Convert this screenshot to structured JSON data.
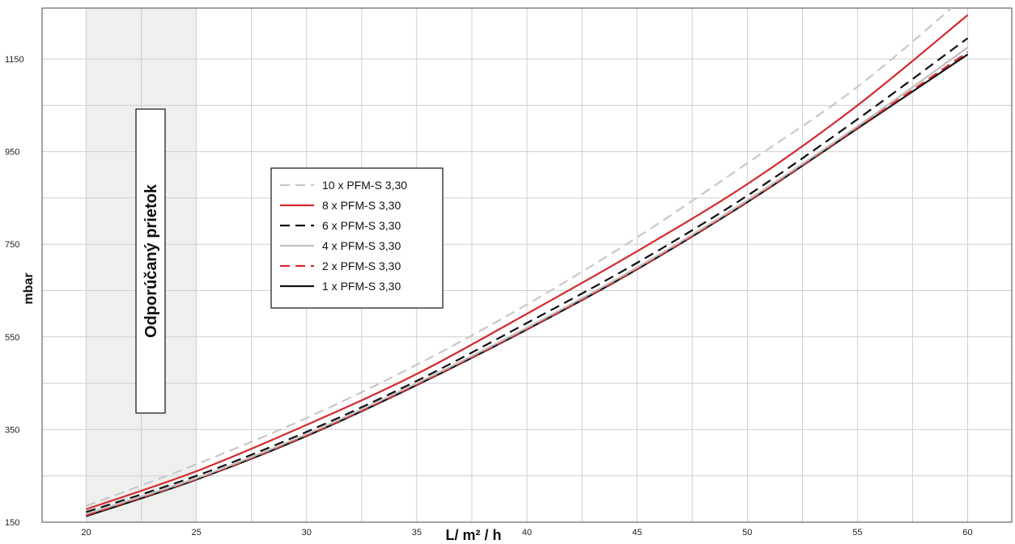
{
  "chart_data": {
    "type": "line",
    "xlabel": "L/ m² / h",
    "ylabel": "mbar",
    "xlim": [
      18,
      62
    ],
    "ylim": [
      150,
      1260
    ],
    "x_ticks": [
      20,
      25,
      30,
      35,
      40,
      45,
      50,
      55,
      60
    ],
    "y_ticks": [
      150,
      350,
      550,
      750,
      950,
      1150
    ],
    "grid": true,
    "recommended_band": {
      "x_range": [
        20,
        25
      ],
      "label": "Odporúčaný prietok",
      "color": "#eef0ee"
    },
    "legend": {
      "placement": "center-left"
    },
    "x": [
      20,
      25,
      30,
      35,
      40,
      45,
      50,
      55,
      60
    ],
    "series": [
      {
        "name": "10 x PFM-S 3,30",
        "color": "#c8c8c8",
        "dash": "dashed",
        "values": [
          185,
          275,
          375,
          490,
          620,
          765,
          925,
          1090,
          1290
        ]
      },
      {
        "name": "8 x PFM-S 3,30",
        "color": "#d42a2e",
        "dash": "solid",
        "values": [
          178,
          260,
          360,
          470,
          600,
          735,
          880,
          1050,
          1245
        ]
      },
      {
        "name": "6 x PFM-S 3,30",
        "color": "#111111",
        "dash": "dashed",
        "values": [
          172,
          250,
          345,
          455,
          580,
          710,
          855,
          1020,
          1195
        ]
      },
      {
        "name": "4 x PFM-S 3,30",
        "color": "#c0c0c0",
        "dash": "solid",
        "values": [
          168,
          245,
          340,
          450,
          570,
          700,
          845,
          1005,
          1175
        ]
      },
      {
        "name": "2 x PFM-S 3,30",
        "color": "#d42a2e",
        "dash": "dashed",
        "values": [
          165,
          243,
          337,
          447,
          567,
          697,
          842,
          1002,
          1165
        ]
      },
      {
        "name": "1 x PFM-S 3,30",
        "color": "#111111",
        "dash": "solid",
        "values": [
          163,
          242,
          336,
          446,
          566,
          696,
          841,
          1000,
          1160
        ]
      }
    ]
  }
}
